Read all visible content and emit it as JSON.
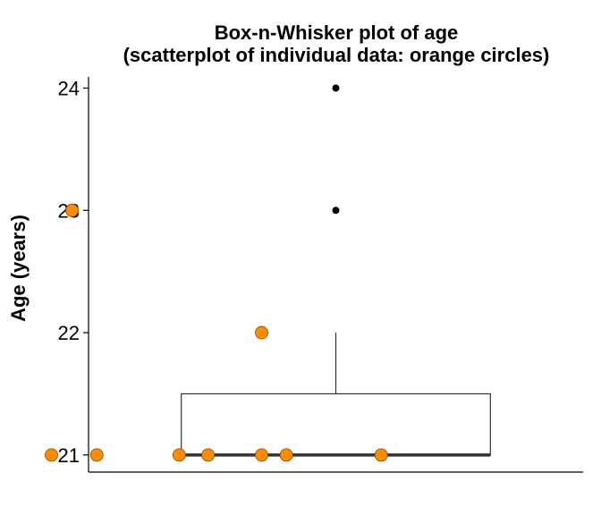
{
  "chart_data": {
    "type": "box",
    "title": "Box-n-Whisker plot of age\n(scatterplot of individual data: orange circles)",
    "title_lines": [
      "Box-n-Whisker plot of age",
      "(scatterplot of individual data: orange circles)"
    ],
    "ylabel": "Age (years)",
    "xlabel": "",
    "ylim": [
      20.86,
      24.15
    ],
    "yticks": [
      21,
      22,
      23,
      24
    ],
    "ytick_labels": [
      "21",
      "22",
      "23",
      "24"
    ],
    "grid": false,
    "box": {
      "q1": 21,
      "median": 21,
      "q3": 21.5,
      "whisker_low": 21,
      "whisker_high": 22,
      "outliers": [
        23,
        24
      ]
    },
    "points": [
      {
        "jitter": 0.13,
        "y": 24
      },
      {
        "jitter": 0.36,
        "y": 23
      },
      {
        "jitter": 0.82,
        "y": 22
      },
      {
        "jitter": -0.04,
        "y": 21
      },
      {
        "jitter": 0.31,
        "y": 21
      },
      {
        "jitter": 0.42,
        "y": 21
      },
      {
        "jitter": 0.62,
        "y": 21
      },
      {
        "jitter": 0.69,
        "y": 21
      },
      {
        "jitter": 0.82,
        "y": 21
      },
      {
        "jitter": 0.88,
        "y": 21
      },
      {
        "jitter": 1.11,
        "y": 21
      }
    ],
    "colors": {
      "points_fill": "#FF8C00",
      "points_stroke": "#8B4500",
      "outliers": "#000000",
      "box_stroke": "#333333"
    }
  }
}
